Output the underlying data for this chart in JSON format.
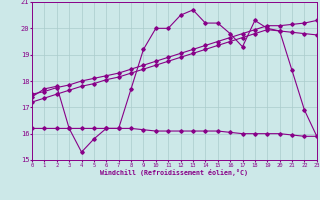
{
  "xlabel": "Windchill (Refroidissement éolien,°C)",
  "bg_color": "#cce8e8",
  "grid_color": "#aacccc",
  "line_color": "#880088",
  "xlim": [
    0,
    23
  ],
  "ylim": [
    15,
    21
  ],
  "yticks": [
    15,
    16,
    17,
    18,
    19,
    20,
    21
  ],
  "xticks": [
    0,
    1,
    2,
    3,
    4,
    5,
    6,
    7,
    8,
    9,
    10,
    11,
    12,
    13,
    14,
    15,
    16,
    17,
    18,
    19,
    20,
    21,
    22,
    23
  ],
  "line_jagged_x": [
    0,
    1,
    2,
    3,
    4,
    5,
    6,
    7,
    8,
    9,
    10,
    11,
    12,
    13,
    14,
    15,
    16,
    17,
    18,
    19,
    20,
    21,
    22,
    23
  ],
  "line_jagged_y": [
    17.4,
    17.7,
    17.8,
    16.2,
    15.3,
    15.8,
    16.2,
    16.2,
    17.7,
    19.2,
    20.0,
    20.0,
    20.5,
    20.7,
    20.2,
    20.2,
    19.8,
    19.3,
    20.3,
    20.0,
    19.9,
    18.4,
    16.9,
    15.9
  ],
  "line_upper_x": [
    0,
    1,
    2,
    3,
    4,
    5,
    6,
    7,
    8,
    9,
    10,
    11,
    12,
    13,
    14,
    15,
    16,
    17,
    18,
    19,
    20,
    21,
    22,
    23
  ],
  "line_upper_y": [
    17.5,
    17.6,
    17.75,
    17.85,
    18.0,
    18.1,
    18.2,
    18.3,
    18.45,
    18.6,
    18.75,
    18.9,
    19.05,
    19.2,
    19.35,
    19.5,
    19.65,
    19.8,
    19.95,
    20.1,
    20.1,
    20.15,
    20.2,
    20.3
  ],
  "line_lower_x": [
    0,
    1,
    2,
    3,
    4,
    5,
    6,
    7,
    8,
    9,
    10,
    11,
    12,
    13,
    14,
    15,
    16,
    17,
    18,
    19,
    20,
    21,
    22,
    23
  ],
  "line_lower_y": [
    17.2,
    17.35,
    17.5,
    17.65,
    17.8,
    17.9,
    18.05,
    18.15,
    18.3,
    18.45,
    18.6,
    18.75,
    18.9,
    19.05,
    19.2,
    19.35,
    19.5,
    19.65,
    19.8,
    19.95,
    19.9,
    19.85,
    19.8,
    19.75
  ],
  "line_flat_x": [
    0,
    1,
    2,
    3,
    4,
    5,
    6,
    7,
    8,
    9,
    10,
    11,
    12,
    13,
    14,
    15,
    16,
    17,
    18,
    19,
    20,
    21,
    22,
    23
  ],
  "line_flat_y": [
    16.2,
    16.2,
    16.2,
    16.2,
    16.2,
    16.2,
    16.2,
    16.2,
    16.2,
    16.15,
    16.1,
    16.1,
    16.1,
    16.1,
    16.1,
    16.1,
    16.05,
    16.0,
    16.0,
    16.0,
    16.0,
    15.95,
    15.9,
    15.9
  ]
}
